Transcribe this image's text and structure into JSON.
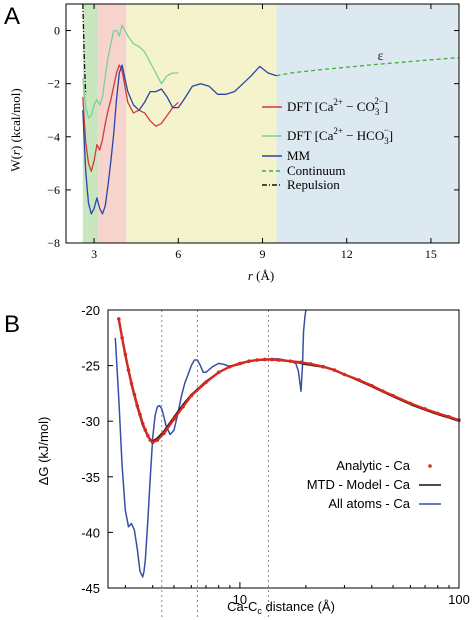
{
  "chart_data": [
    {
      "panel_label": "A",
      "type": "line",
      "xlabel_prefix": "r",
      "xlabel_suffix": " (Å)",
      "ylabel_prefix": "W(",
      "ylabel_italic": "r",
      "ylabel_suffix": ") (kcal/mol)",
      "xlim": [
        2,
        16
      ],
      "ylim": [
        -8,
        1
      ],
      "xticks": [
        3,
        6,
        9,
        12,
        15
      ],
      "yticks": [
        0,
        -2,
        -4,
        -6,
        -8
      ],
      "xtick_labels": [
        "3",
        "6",
        "9",
        "12",
        "15"
      ],
      "ytick_labels": [
        "0",
        "−2",
        "−4",
        "−6",
        "−8"
      ],
      "regions": [
        {
          "x0": 2.6,
          "x1": 3.15,
          "color": "#c9e6bf"
        },
        {
          "x0": 3.15,
          "x1": 4.15,
          "color": "#f6d3cc"
        },
        {
          "x0": 4.15,
          "x1": 9.5,
          "color": "#f5f3cc"
        },
        {
          "x0": 9.5,
          "x1": 16,
          "color": "#dde9f0"
        }
      ],
      "annotation": {
        "text": "ε",
        "x": 13.1,
        "y": -1.1
      },
      "legend": {
        "position": "right",
        "entries": [
          {
            "label": "DFT [Ca2+ − CO32−]",
            "color": "#d23a36",
            "style": "solid"
          },
          {
            "label": "DFT [Ca2+ − HCO3−]",
            "color": "#7dcf9b",
            "style": "solid"
          },
          {
            "label": "MM",
            "color": "#2a44a8",
            "style": "solid"
          },
          {
            "label": "Continuum",
            "color": "#42ad3b",
            "style": "dashed"
          },
          {
            "label": "Repulsion",
            "color": "#111111",
            "style": "dashdot"
          }
        ]
      },
      "legend_text": {
        "dft1_prefix": "DFT [Ca",
        "dft1_sup1": "2+",
        "dft1_mid": " − CO",
        "dft1_sub": "3",
        "dft1_sup2": "2−",
        "dft1_suffix": "]",
        "dft2_prefix": "DFT [Ca",
        "dft2_sup1": "2+",
        "dft2_mid": " − HCO",
        "dft2_sub": "3",
        "dft2_sup2": "−",
        "dft2_suffix": "]",
        "mm": "MM",
        "continuum": "Continuum",
        "repulsion": "Repulsion"
      },
      "series": [
        {
          "name": "DFT [Ca2+ − CO32−]",
          "color": "#d23a36",
          "x": [
            2.6,
            2.7,
            2.8,
            2.9,
            3.0,
            3.1,
            3.2,
            3.3,
            3.4,
            3.5,
            3.6,
            3.7,
            3.8,
            3.9,
            4.0,
            4.1,
            4.2,
            4.4,
            4.6,
            4.8,
            5.0,
            5.2,
            5.4,
            5.6,
            5.8,
            6.0
          ],
          "y": [
            -2.5,
            -4.2,
            -5.0,
            -5.3,
            -4.9,
            -4.3,
            -4.5,
            -4.1,
            -3.5,
            -3.0,
            -2.6,
            -2.1,
            -1.6,
            -1.3,
            -1.5,
            -2.1,
            -2.7,
            -3.1,
            -3.0,
            -3.1,
            -3.4,
            -3.6,
            -3.5,
            -3.2,
            -2.9,
            -2.7
          ]
        },
        {
          "name": "DFT [Ca2+ − HCO3−]",
          "color": "#7dcf9b",
          "x": [
            2.6,
            2.7,
            2.8,
            2.9,
            3.0,
            3.1,
            3.2,
            3.3,
            3.4,
            3.5,
            3.6,
            3.7,
            3.8,
            3.9,
            4.0,
            4.1,
            4.2,
            4.4,
            4.6,
            4.8,
            5.0,
            5.2,
            5.4,
            5.6,
            5.8,
            6.0
          ],
          "y": [
            -1.8,
            -2.9,
            -3.3,
            -3.2,
            -2.8,
            -2.6,
            -2.8,
            -2.5,
            -1.7,
            -1.0,
            -0.5,
            0.0,
            0.0,
            -0.2,
            0.2,
            0.0,
            -0.2,
            -0.5,
            -0.6,
            -0.8,
            -1.2,
            -1.6,
            -2.0,
            -1.7,
            -1.6,
            -1.6
          ]
        },
        {
          "name": "MM",
          "color": "#2a44a8",
          "x": [
            2.6,
            2.7,
            2.8,
            2.9,
            3.0,
            3.1,
            3.2,
            3.3,
            3.4,
            3.5,
            3.6,
            3.7,
            3.8,
            3.9,
            4.0,
            4.1,
            4.2,
            4.4,
            4.6,
            4.8,
            5.0,
            5.2,
            5.4,
            5.6,
            5.8,
            6.0,
            6.2,
            6.5,
            6.8,
            7.1,
            7.4,
            7.7,
            8.0,
            8.3,
            8.6,
            8.9,
            9.2,
            9.5
          ],
          "y": [
            -3.0,
            -5.3,
            -6.5,
            -6.9,
            -6.7,
            -6.3,
            -6.7,
            -6.9,
            -6.6,
            -5.8,
            -4.9,
            -3.9,
            -2.6,
            -1.6,
            -1.3,
            -1.8,
            -2.3,
            -2.8,
            -3.0,
            -2.7,
            -2.3,
            -2.3,
            -2.2,
            -2.5,
            -2.9,
            -2.9,
            -2.6,
            -2.1,
            -2.0,
            -2.1,
            -2.4,
            -2.4,
            -2.3,
            -2.0,
            -1.7,
            -1.35,
            -1.6,
            -1.7
          ]
        },
        {
          "name": "Continuum",
          "color": "#42ad3b",
          "style": "dashed",
          "x": [
            9.5,
            10,
            11,
            12,
            13,
            14,
            15,
            16
          ],
          "y": [
            -1.7,
            -1.6,
            -1.48,
            -1.38,
            -1.28,
            -1.19,
            -1.1,
            -1.02
          ]
        },
        {
          "name": "Repulsion",
          "color": "#111111",
          "style": "dashdot",
          "x": [
            2.6,
            2.63,
            2.66,
            2.7
          ],
          "y": [
            1.0,
            -0.2,
            -1.3,
            -2.4
          ]
        }
      ]
    },
    {
      "panel_label": "B",
      "type": "line",
      "xscale": "log",
      "xlabel_prefix": "Ca-C",
      "xlabel_sub": "c",
      "xlabel_suffix": " distance (Å)",
      "ylabel": "ΔG (kJ/mol)",
      "xlim": [
        2.5,
        100
      ],
      "ylim": [
        -45,
        -20
      ],
      "xticks": [
        10,
        100
      ],
      "xtick_labels": [
        "10",
        "100"
      ],
      "yticks": [
        -20,
        -25,
        -30,
        -35,
        -40,
        -45
      ],
      "ytick_labels": [
        "-20",
        "-25",
        "-30",
        "-35",
        "-40",
        "-45"
      ],
      "vlines": [
        4.4,
        6.4,
        13.5
      ],
      "legend": {
        "position": "bottom-right",
        "entries": [
          {
            "label": "Analytic - Ca",
            "color": "#d42a20",
            "style": "dots"
          },
          {
            "label": "MTD - Model - Ca",
            "color": "#111111",
            "style": "solid"
          },
          {
            "label": "All atoms - Ca",
            "color": "#3a4ea4",
            "style": "solid"
          }
        ]
      },
      "legend_text": {
        "analytic": "Analytic - Ca",
        "mtd": "MTD - Model - Ca",
        "allatoms": "All atoms - Ca"
      },
      "series": [
        {
          "name": "Analytic - Ca",
          "color": "#d42a20",
          "style": "dots",
          "x": [
            2.8,
            2.9,
            3.0,
            3.1,
            3.2,
            3.3,
            3.4,
            3.5,
            3.6,
            3.7,
            3.8,
            3.9,
            4.0,
            4.2,
            4.5,
            5.0,
            5.5,
            6.0,
            7.0,
            8.0,
            9.0,
            10,
            11,
            12,
            13,
            14,
            15,
            17,
            19,
            21,
            24,
            27,
            30,
            35,
            40,
            45,
            50,
            60,
            70,
            80,
            90,
            100
          ],
          "y": [
            -20.8,
            -22.5,
            -24.0,
            -25.4,
            -26.6,
            -27.6,
            -28.6,
            -29.4,
            -30.2,
            -30.8,
            -31.3,
            -31.7,
            -31.9,
            -31.7,
            -31.1,
            -29.8,
            -28.7,
            -27.7,
            -26.5,
            -25.6,
            -25.1,
            -24.8,
            -24.6,
            -24.5,
            -24.45,
            -24.45,
            -24.5,
            -24.6,
            -24.7,
            -24.85,
            -25.1,
            -25.4,
            -25.8,
            -26.3,
            -26.8,
            -27.3,
            -27.7,
            -28.4,
            -28.9,
            -29.3,
            -29.6,
            -29.9
          ]
        },
        {
          "name": "MTD - Model - Ca",
          "color": "#111111",
          "x": [
            2.8,
            3.0,
            3.2,
            3.4,
            3.6,
            3.8,
            4.0,
            4.2,
            4.5,
            5.0,
            5.5,
            6.0,
            7.0,
            8.0,
            9.0,
            10,
            12,
            14,
            17,
            20,
            25,
            30,
            40,
            50,
            60,
            70,
            80,
            90,
            100
          ],
          "y": [
            -21.0,
            -24.2,
            -26.8,
            -28.8,
            -30.4,
            -31.4,
            -31.8,
            -31.5,
            -30.9,
            -29.6,
            -28.5,
            -27.6,
            -26.4,
            -25.6,
            -25.1,
            -24.8,
            -24.5,
            -24.4,
            -24.6,
            -24.9,
            -25.2,
            -25.8,
            -26.9,
            -27.8,
            -28.5,
            -29.0,
            -29.4,
            -29.7,
            -30.0
          ]
        },
        {
          "name": "All atoms - Ca",
          "color": "#3a4ea4",
          "x": [
            2.7,
            2.8,
            2.9,
            3.0,
            3.1,
            3.2,
            3.3,
            3.4,
            3.5,
            3.6,
            3.65,
            3.7,
            3.8,
            3.9,
            4.0,
            4.1,
            4.2,
            4.3,
            4.4,
            4.5,
            4.6,
            4.8,
            5.0,
            5.2,
            5.4,
            5.6,
            5.8,
            6.0,
            6.2,
            6.4,
            6.6,
            6.8,
            7.0,
            7.5,
            8.0,
            8.5,
            9.0,
            10,
            11,
            12,
            13,
            14,
            15,
            16,
            17,
            18,
            18.5,
            19.0,
            19.3,
            19.5,
            19.8,
            20.0
          ],
          "y": [
            -22.5,
            -28.0,
            -34.0,
            -38.0,
            -39.5,
            -39.2,
            -39.8,
            -41.5,
            -43.5,
            -44.0,
            -43.5,
            -42.5,
            -39.0,
            -35.0,
            -31.5,
            -29.5,
            -28.7,
            -28.6,
            -28.9,
            -29.6,
            -30.4,
            -31.2,
            -30.8,
            -29.4,
            -27.8,
            -26.6,
            -25.8,
            -25.0,
            -24.5,
            -24.5,
            -25.0,
            -25.6,
            -25.6,
            -25.1,
            -24.8,
            -24.9,
            -25.1,
            -24.9,
            -24.6,
            -24.5,
            -24.5,
            -24.4,
            -24.4,
            -24.5,
            -24.6,
            -24.8,
            -25.5,
            -27.3,
            -25.0,
            -22.0,
            -20.6,
            -20.0
          ]
        }
      ]
    }
  ]
}
